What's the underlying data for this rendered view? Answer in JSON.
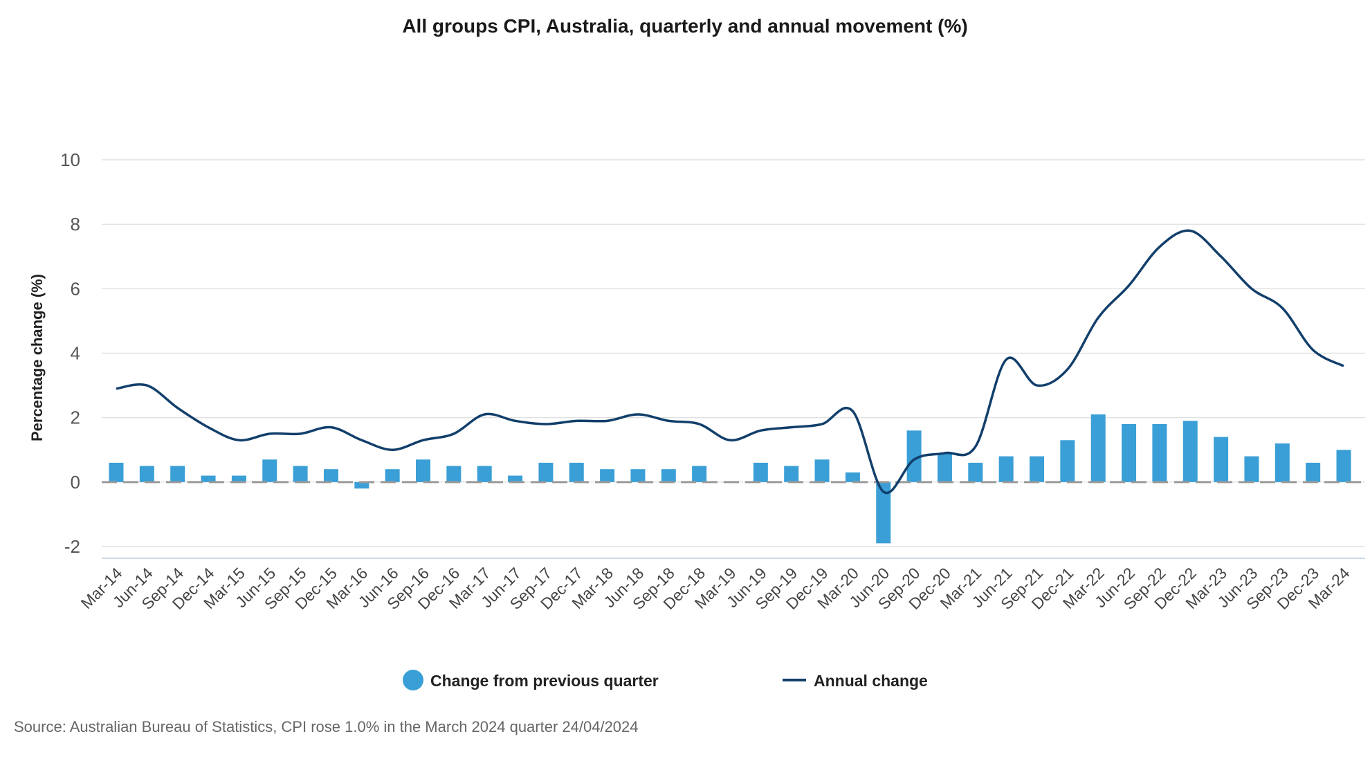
{
  "chart_data": {
    "type": "bar+line",
    "title": "All groups CPI, Australia, quarterly and annual movement (%)",
    "ylabel": "Percentage change (%)",
    "xlabel": "",
    "ylim": [
      -2,
      10
    ],
    "yticks": [
      -2,
      0,
      2,
      4,
      6,
      8,
      10
    ],
    "grid": true,
    "legend_position": "bottom-center",
    "categories": [
      "Mar-14",
      "Jun-14",
      "Sep-14",
      "Dec-14",
      "Mar-15",
      "Jun-15",
      "Sep-15",
      "Dec-15",
      "Mar-16",
      "Jun-16",
      "Sep-16",
      "Dec-16",
      "Mar-17",
      "Jun-17",
      "Sep-17",
      "Dec-17",
      "Mar-18",
      "Jun-18",
      "Sep-18",
      "Dec-18",
      "Mar-19",
      "Jun-19",
      "Sep-19",
      "Dec-19",
      "Mar-20",
      "Jun-20",
      "Sep-20",
      "Dec-20",
      "Mar-21",
      "Jun-21",
      "Sep-21",
      "Dec-21",
      "Mar-22",
      "Jun-22",
      "Sep-22",
      "Dec-22",
      "Mar-23",
      "Jun-23",
      "Sep-23",
      "Dec-23",
      "Mar-24"
    ],
    "series": [
      {
        "name": "Change from previous quarter",
        "kind": "bar",
        "color": "#3a9fd6",
        "values": [
          0.6,
          0.5,
          0.5,
          0.2,
          0.2,
          0.7,
          0.5,
          0.4,
          -0.2,
          0.4,
          0.7,
          0.5,
          0.5,
          0.2,
          0.6,
          0.6,
          0.4,
          0.4,
          0.4,
          0.5,
          0.0,
          0.6,
          0.5,
          0.7,
          0.3,
          -1.9,
          1.6,
          0.9,
          0.6,
          0.8,
          0.8,
          1.3,
          2.1,
          1.8,
          1.8,
          1.9,
          1.4,
          0.8,
          1.2,
          0.6,
          1.0
        ]
      },
      {
        "name": "Annual change",
        "kind": "line",
        "color": "#123f6b",
        "values": [
          2.9,
          3.0,
          2.3,
          1.7,
          1.3,
          1.5,
          1.5,
          1.7,
          1.3,
          1.0,
          1.3,
          1.5,
          2.1,
          1.9,
          1.8,
          1.9,
          1.9,
          2.1,
          1.9,
          1.8,
          1.3,
          1.6,
          1.7,
          1.8,
          2.2,
          -0.3,
          0.7,
          0.9,
          1.1,
          3.8,
          3.0,
          3.5,
          5.1,
          6.1,
          7.3,
          7.8,
          7.0,
          6.0,
          5.4,
          4.1,
          3.6
        ]
      }
    ]
  },
  "source": "Source: Australian Bureau of Statistics, CPI rose 1.0% in the March 2024 quarter 24/04/2024"
}
